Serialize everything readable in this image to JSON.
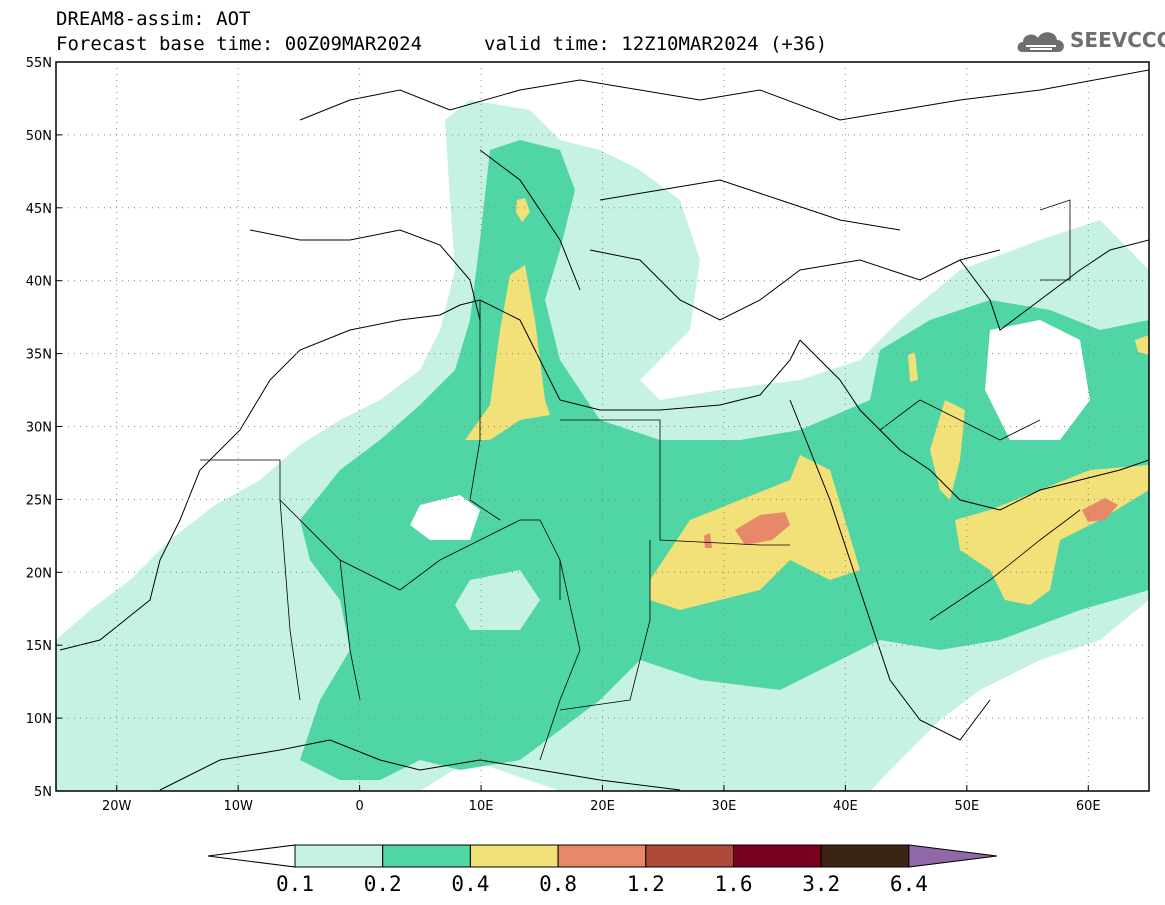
{
  "header": {
    "title": "DREAM8-assim: AOT",
    "base_time": "Forecast base time: 00Z09MAR2024",
    "valid_time": "valid time: 12Z10MAR2024 (+36)"
  },
  "logo": {
    "text": "SEEVCCC",
    "icon": "cloud-icon"
  },
  "map": {
    "lon_range": [
      -25,
      65
    ],
    "lat_range": [
      5,
      55
    ],
    "x_ticks": [
      "20W",
      "10W",
      "0",
      "10E",
      "20E",
      "30E",
      "40E",
      "50E",
      "60E"
    ],
    "y_ticks": [
      "55N",
      "50N",
      "45N",
      "40N",
      "35N",
      "30N",
      "25N",
      "20N",
      "15N",
      "10N",
      "5N"
    ],
    "grid": true
  },
  "colorbar": {
    "labels": [
      "0.1",
      "0.2",
      "0.4",
      "0.8",
      "1.2",
      "1.6",
      "3.2",
      "6.4"
    ],
    "colors": [
      "#ffffff",
      "#c6f2e4",
      "#4fd6a4",
      "#f2e078",
      "#e8886a",
      "#b04a38",
      "#7a0020",
      "#3c2414",
      "#9068a8"
    ]
  }
}
